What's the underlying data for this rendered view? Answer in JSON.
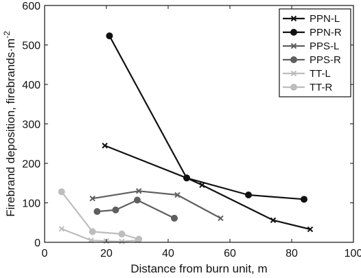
{
  "chart_data": {
    "type": "line",
    "title": "",
    "xlabel": "Distance from burn unit, m",
    "ylabel": "Firebrand deposition, firebrands·m",
    "ylabel_superscript": "-2",
    "xlim": [
      0,
      100
    ],
    "ylim": [
      0,
      600
    ],
    "xticks": [
      0,
      20,
      40,
      60,
      80,
      100
    ],
    "yticks": [
      0,
      100,
      200,
      300,
      400,
      500,
      600
    ],
    "xtick_labels": [
      "0",
      "20",
      "40",
      "60",
      "80",
      "100"
    ],
    "ytick_labels": [
      "0",
      "100",
      "200",
      "300",
      "400",
      "500",
      "600"
    ],
    "grid": false,
    "legend_position": "top-right",
    "series": [
      {
        "name": "PPN-L",
        "marker": "x",
        "color": "#111111",
        "x": [
          19.5,
          46,
          51,
          74,
          86
        ],
        "y": [
          245,
          163,
          145,
          56,
          33
        ]
      },
      {
        "name": "PPN-R",
        "marker": "circle",
        "color": "#111111",
        "x": [
          21,
          46,
          66,
          84
        ],
        "y": [
          523,
          163,
          120,
          109
        ]
      },
      {
        "name": "PPS-L",
        "marker": "x",
        "color": "#5f5f5f",
        "x": [
          15.5,
          30.5,
          43,
          57
        ],
        "y": [
          111,
          130,
          120,
          61
        ]
      },
      {
        "name": "PPS-R",
        "marker": "circle",
        "color": "#5f5f5f",
        "x": [
          17,
          23,
          30,
          42
        ],
        "y": [
          78,
          82,
          107,
          61
        ]
      },
      {
        "name": "TT-L",
        "marker": "x",
        "color": "#bdbdbd",
        "x": [
          5.5,
          15,
          20,
          25,
          30
        ],
        "y": [
          34,
          5,
          3,
          2,
          5
        ]
      },
      {
        "name": "TT-R",
        "marker": "circle",
        "color": "#bdbdbd",
        "x": [
          5.5,
          15.5,
          25,
          30.5
        ],
        "y": [
          128,
          27,
          21,
          8
        ]
      }
    ]
  }
}
